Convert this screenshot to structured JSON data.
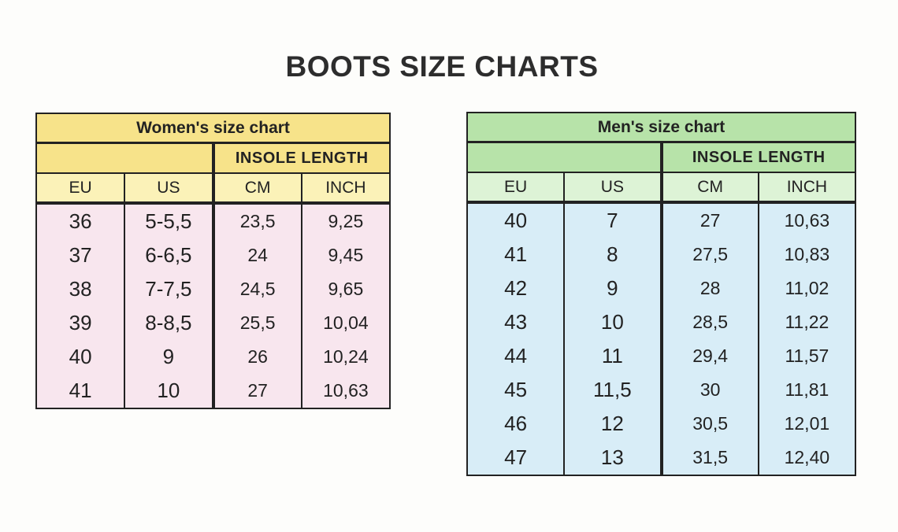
{
  "page_title": "BOOTS SIZE CHARTS",
  "colors": {
    "women_header": "#f7e38a",
    "women_subheader": "#fbf2b8",
    "women_body": "#f8e6ee",
    "men_header": "#b7e3a9",
    "men_subheader": "#ddf3d6",
    "men_body": "#d8edf7"
  },
  "women": {
    "title": "Women's size chart",
    "group_label": "INSOLE LENGTH",
    "columns": [
      "EU",
      "US",
      "CM",
      "INCH"
    ],
    "rows": [
      [
        "36",
        "5-5,5",
        "23,5",
        "9,25"
      ],
      [
        "37",
        "6-6,5",
        "24",
        "9,45"
      ],
      [
        "38",
        "7-7,5",
        "24,5",
        "9,65"
      ],
      [
        "39",
        "8-8,5",
        "25,5",
        "10,04"
      ],
      [
        "40",
        "9",
        "26",
        "10,24"
      ],
      [
        "41",
        "10",
        "27",
        "10,63"
      ]
    ]
  },
  "men": {
    "title": "Men's size chart",
    "group_label": "INSOLE LENGTH",
    "columns": [
      "EU",
      "US",
      "CM",
      "INCH"
    ],
    "rows": [
      [
        "40",
        "7",
        "27",
        "10,63"
      ],
      [
        "41",
        "8",
        "27,5",
        "10,83"
      ],
      [
        "42",
        "9",
        "28",
        "11,02"
      ],
      [
        "43",
        "10",
        "28,5",
        "11,22"
      ],
      [
        "44",
        "11",
        "29,4",
        "11,57"
      ],
      [
        "45",
        "11,5",
        "30",
        "11,81"
      ],
      [
        "46",
        "12",
        "30,5",
        "12,01"
      ],
      [
        "47",
        "13",
        "31,5",
        "12,40"
      ]
    ]
  }
}
